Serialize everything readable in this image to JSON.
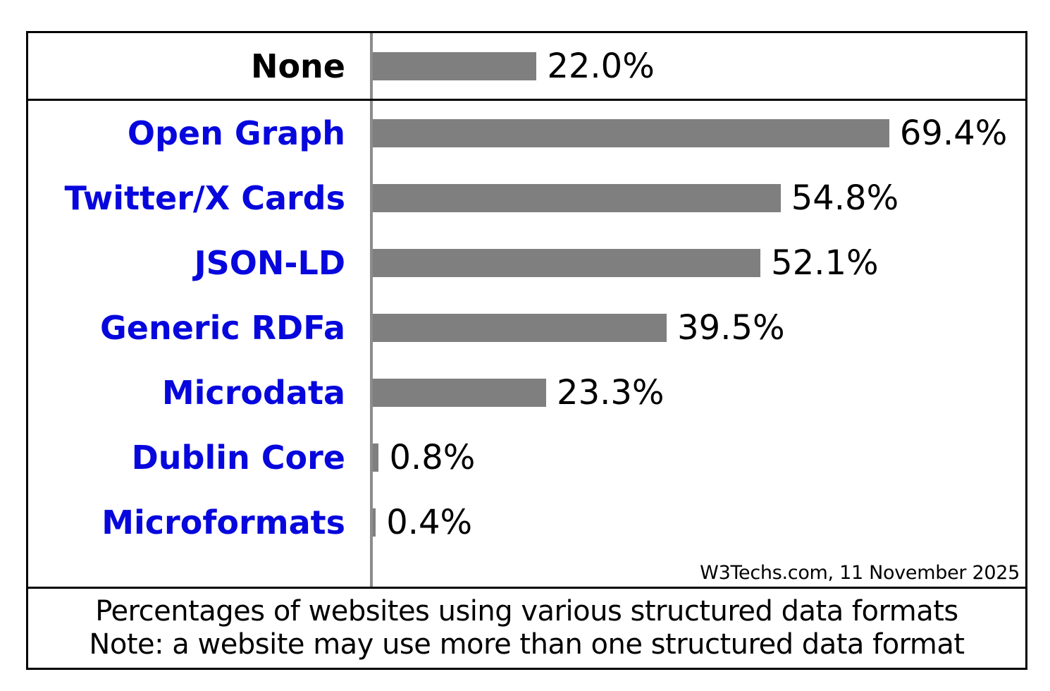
{
  "chart_data": {
    "type": "bar",
    "orientation": "horizontal",
    "unit": "%",
    "xlim": [
      0,
      100
    ],
    "grid": false,
    "legend": null,
    "categories": [
      "None",
      "Open Graph",
      "Twitter/X Cards",
      "JSON-LD",
      "Generic RDFa",
      "Microdata",
      "Dublin Core",
      "Microformats"
    ],
    "values": [
      22.0,
      69.4,
      54.8,
      52.1,
      39.5,
      23.3,
      0.8,
      0.4
    ],
    "rows": [
      {
        "label": "None",
        "value": 22.0,
        "value_label": "22.0%",
        "is_link": false
      },
      {
        "label": "Open Graph",
        "value": 69.4,
        "value_label": "69.4%",
        "is_link": true
      },
      {
        "label": "Twitter/X Cards",
        "value": 54.8,
        "value_label": "54.8%",
        "is_link": true
      },
      {
        "label": "JSON-LD",
        "value": 52.1,
        "value_label": "52.1%",
        "is_link": true
      },
      {
        "label": "Generic RDFa",
        "value": 39.5,
        "value_label": "39.5%",
        "is_link": true
      },
      {
        "label": "Microdata",
        "value": 23.3,
        "value_label": "23.3%",
        "is_link": true
      },
      {
        "label": "Dublin Core",
        "value": 0.8,
        "value_label": "0.8%",
        "is_link": true
      },
      {
        "label": "Microformats",
        "value": 0.4,
        "value_label": "0.4%",
        "is_link": true
      }
    ]
  },
  "source_note": "W3Techs.com, 11 November 2025",
  "caption": {
    "line1": "Percentages of websites using various structured data formats",
    "line2": "Note: a website may use more than one structured data format"
  },
  "colors": {
    "bar": "#7f7f7f",
    "category_link": "#0707dd",
    "category_plain": "#000000",
    "axis": "#8c8c8c",
    "border": "#000000"
  }
}
